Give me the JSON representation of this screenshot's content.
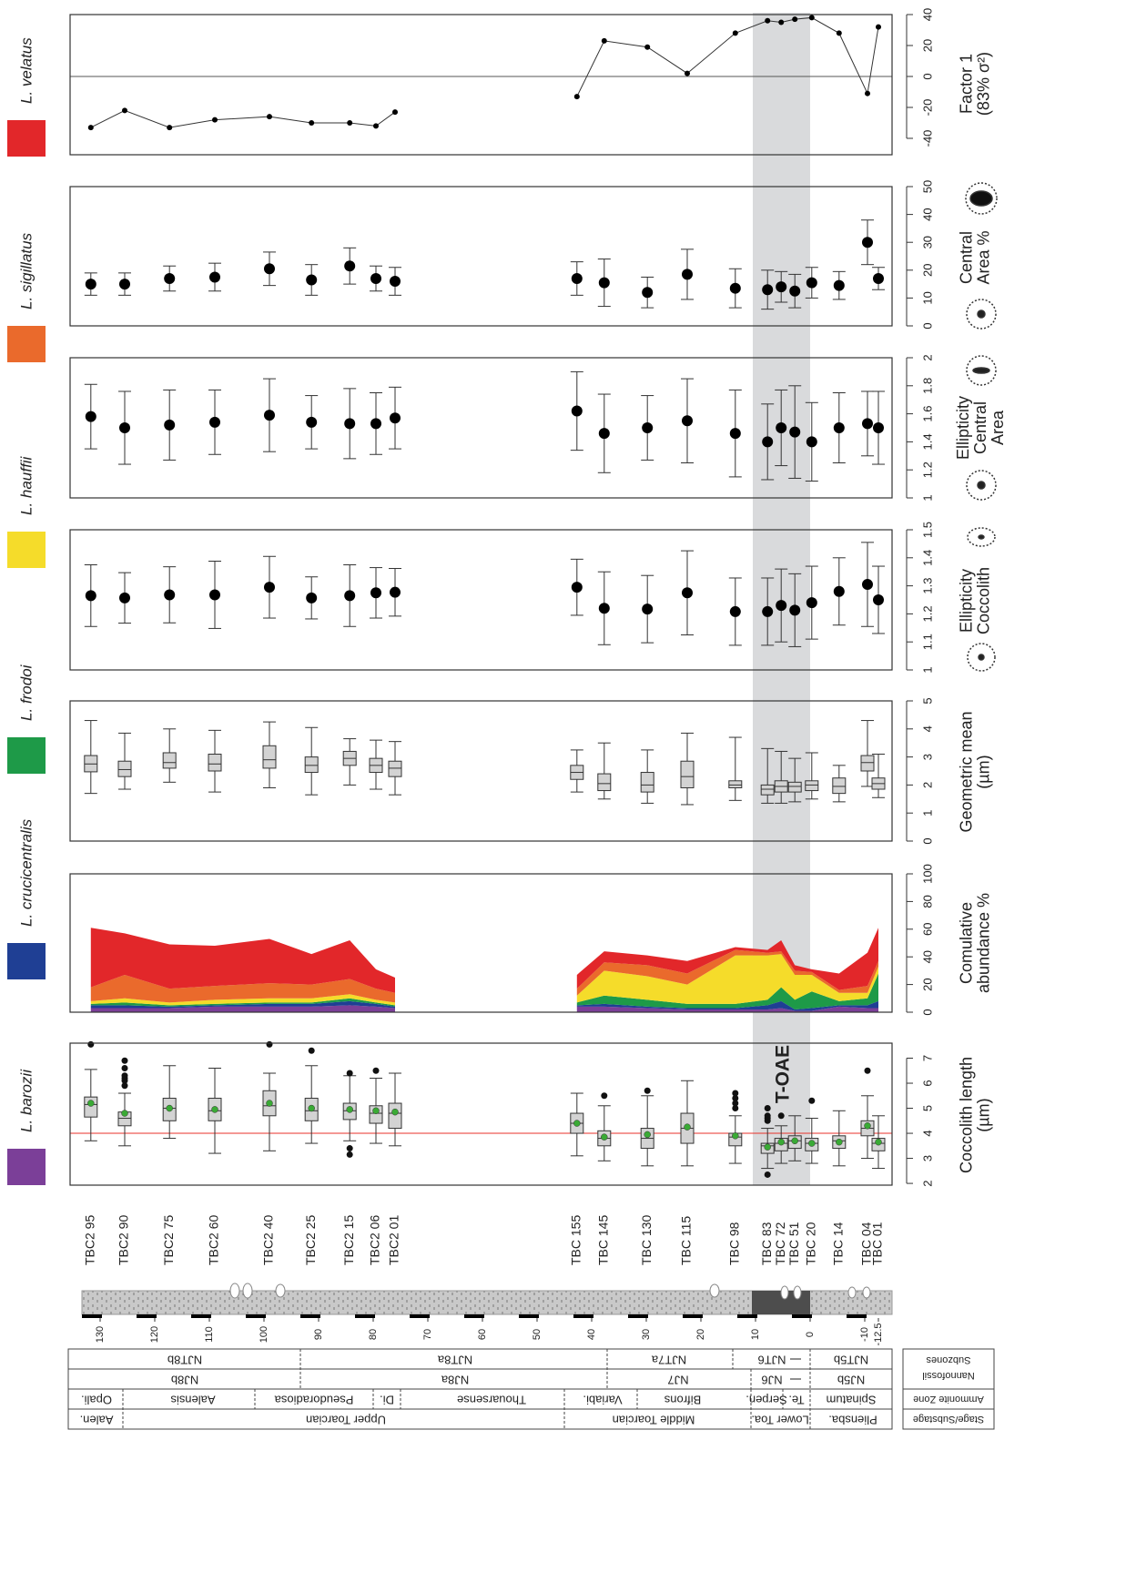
{
  "samples": [
    "TBC2 95",
    "TBC2 90",
    "TBC2 75",
    "TBC2 60",
    "TBC2 40",
    "TBC2 25",
    "TBC2 15",
    "TBC2 06",
    "TBC2 01",
    null,
    "TBC 155",
    "TBC 145",
    "TBC 130",
    "TBC 115",
    "TBC 98",
    "TBC 83",
    "TBC 72",
    "TBC 51",
    "TBC 20",
    "TBC 14",
    "TBC 04",
    "TBC 01"
  ],
  "highlight": {
    "label": "T-OAE",
    "range": [
      10.5,
      0
    ],
    "color": "#d9dadc"
  },
  "section": {
    "depth_ticks": [
      130,
      120,
      110,
      100,
      90,
      80,
      70,
      60,
      50,
      40,
      30,
      20,
      10,
      0,
      -10,
      -12.5
    ]
  },
  "stratigraphy": {
    "headers": {
      "stage": "Stage/Substage",
      "ammonite": "Ammonite Zone",
      "nannofossil": [
        "Nannofossil",
        "Subzones"
      ]
    },
    "stage": [
      "Aalen.",
      "Upper Toarcian",
      "Middle Toarcian",
      "Lower Toa.",
      "Pliensba."
    ],
    "ammonite": [
      "Opali.",
      "Aalensis",
      "Pseudoradiosa",
      "Di.",
      "Thouarsense",
      "Variabi.",
      "Bifrons",
      "Serpen.",
      "Te.",
      "Spinatum"
    ],
    "nannofossil_zone": [
      "NJ8b",
      "NJ8a",
      "NJ7",
      "NJ6",
      "NJ5b"
    ],
    "subzones": [
      "NJT8b",
      "NJT8a",
      "NJT7a",
      "NJT6",
      "NJT5b"
    ]
  },
  "chart_data": [
    {
      "type": "boxplot",
      "y_label": [
        "Coccolith length",
        "(µm)"
      ],
      "xlim": [
        135.5,
        -15
      ],
      "ylim": [
        1.93,
        7.6
      ],
      "yticks": [
        2,
        3,
        4,
        5,
        6,
        7
      ],
      "ref_line": 4,
      "ref_color": "#e8312a",
      "box_color": "#d3d3d3",
      "mean_color": "#3aaa35",
      "x": [
        131.7,
        125.5,
        117.3,
        109,
        99,
        91.3,
        84.3,
        79.5,
        76,
        null,
        42.7,
        37.7,
        29.8,
        22.5,
        13.7,
        7.8,
        5.3,
        2.8,
        -0.3,
        -5.3,
        -10.5,
        -12.5
      ],
      "low": [
        3.7,
        3.5,
        3.8,
        3.2,
        3.3,
        3.6,
        3.7,
        3.6,
        3.5,
        null,
        3.1,
        2.9,
        2.7,
        2.7,
        2.8,
        2.6,
        2.8,
        2.9,
        2.8,
        2.7,
        3.0,
        2.6
      ],
      "q1": [
        4.65,
        4.3,
        4.5,
        4.5,
        4.7,
        4.5,
        4.55,
        4.4,
        4.2,
        null,
        4.0,
        3.5,
        3.4,
        3.6,
        3.5,
        3.2,
        3.3,
        3.4,
        3.3,
        3.4,
        3.9,
        3.3
      ],
      "median": [
        5.15,
        4.6,
        5.0,
        4.9,
        5.1,
        4.9,
        4.9,
        4.8,
        4.8,
        null,
        4.4,
        3.8,
        3.8,
        4.2,
        3.85,
        3.5,
        3.6,
        3.7,
        3.6,
        3.7,
        4.2,
        3.6
      ],
      "q3": [
        5.45,
        4.85,
        5.4,
        5.4,
        5.7,
        5.4,
        5.2,
        5.1,
        5.2,
        null,
        4.8,
        4.1,
        4.2,
        4.8,
        4.0,
        3.6,
        3.8,
        3.9,
        3.8,
        3.9,
        4.5,
        3.8
      ],
      "high": [
        6.55,
        5.6,
        6.7,
        6.6,
        6.4,
        6.7,
        6.3,
        6.2,
        6.4,
        null,
        5.6,
        5.1,
        5.5,
        6.1,
        4.7,
        4.2,
        4.3,
        4.7,
        4.6,
        4.9,
        5.5,
        4.7
      ],
      "mean": [
        5.2,
        4.8,
        5.0,
        4.95,
        5.2,
        5.0,
        4.95,
        4.9,
        4.85,
        null,
        4.4,
        3.85,
        3.95,
        4.25,
        3.9,
        3.45,
        3.65,
        3.7,
        3.6,
        3.65,
        4.3,
        3.65
      ],
      "outliers": [
        [
          7.55
        ],
        [
          5.9,
          6.1,
          6.2,
          6.3,
          6.6,
          6.9
        ],
        [],
        [],
        [
          7.55
        ],
        [
          7.3
        ],
        [
          3.15,
          3.4,
          6.4
        ],
        [
          6.5
        ],
        [],
        null,
        [],
        [
          5.5
        ],
        [
          5.7
        ],
        [],
        [
          5.0,
          5.2,
          5.4,
          5.6
        ],
        [
          2.35,
          4.5,
          4.6,
          4.7,
          5.0
        ],
        [
          4.7
        ],
        [],
        [
          5.3
        ],
        [],
        [
          6.5
        ],
        []
      ]
    },
    {
      "type": "area",
      "y_label": [
        "Comulative",
        "abundance %"
      ],
      "xlim": [
        135.5,
        -15
      ],
      "ylim": [
        0,
        100
      ],
      "yticks": [
        0,
        20,
        40,
        60,
        80,
        100
      ],
      "x": [
        131.7,
        125.5,
        117.3,
        109,
        99,
        91.3,
        84.3,
        79.5,
        76,
        null,
        42.7,
        37.7,
        29.8,
        22.5,
        13.7,
        7.8,
        5.3,
        2.8,
        -0.3,
        -5.3,
        -10.5,
        -12.5
      ],
      "series": [
        {
          "name": "L. barozii",
          "color": "#7b3f98",
          "values": [
            3,
            3,
            3,
            4,
            4,
            4,
            5,
            4,
            3,
            null,
            4,
            4,
            3,
            2,
            2,
            2,
            3,
            1,
            1,
            4,
            3,
            3
          ]
        },
        {
          "name": "L. crucicentralis",
          "color": "#1f3f94",
          "values": [
            2,
            2,
            1,
            1,
            2,
            2,
            3,
            2,
            1,
            null,
            1,
            2,
            1,
            1,
            1,
            3,
            5,
            1,
            2,
            1,
            2,
            5
          ]
        },
        {
          "name": "L. frodoi",
          "color": "#1e9a48",
          "values": [
            1,
            2,
            1,
            1,
            1,
            1,
            2,
            1,
            1,
            null,
            2,
            6,
            5,
            3,
            3,
            4,
            10,
            7,
            12,
            3,
            5,
            20
          ]
        },
        {
          "name": "L. hauffii",
          "color": "#f5dc2a",
          "values": [
            2,
            3,
            2,
            3,
            3,
            3,
            3,
            2,
            2,
            null,
            5,
            18,
            17,
            14,
            35,
            32,
            24,
            18,
            12,
            6,
            4,
            5
          ]
        },
        {
          "name": "L. sigillatus",
          "color": "#ea6a2c",
          "values": [
            10,
            17,
            10,
            10,
            11,
            10,
            11,
            8,
            7,
            null,
            5,
            6,
            8,
            8,
            4,
            2,
            2,
            3,
            2,
            2,
            5,
            4
          ]
        },
        {
          "name": "L. velatus",
          "color": "#e2272a",
          "values": [
            43,
            30,
            32,
            29,
            32,
            22,
            28,
            14,
            11,
            null,
            10,
            8,
            7,
            9,
            2,
            2,
            8,
            4,
            2,
            12,
            24,
            24
          ]
        }
      ]
    },
    {
      "type": "boxplot",
      "y_label": [
        "Geometric mean",
        "(µm)"
      ],
      "xlim": [
        135.5,
        -15
      ],
      "ylim": [
        0,
        5
      ],
      "yticks": [
        0,
        1,
        2,
        3,
        4,
        5
      ],
      "box_color": "#d3d3d3",
      "x": [
        131.7,
        125.5,
        117.3,
        109,
        99,
        91.3,
        84.3,
        79.5,
        76,
        null,
        42.7,
        37.7,
        29.8,
        22.5,
        13.7,
        7.8,
        5.3,
        2.8,
        -0.3,
        -5.3,
        -10.5,
        -12.5
      ],
      "low": [
        1.7,
        1.85,
        2.1,
        1.75,
        1.9,
        1.65,
        2.0,
        1.85,
        1.65,
        null,
        1.75,
        1.5,
        1.35,
        1.3,
        1.45,
        1.35,
        1.35,
        1.4,
        1.5,
        1.4,
        1.95,
        1.55
      ],
      "q1": [
        2.47,
        2.3,
        2.6,
        2.5,
        2.6,
        2.45,
        2.7,
        2.45,
        2.3,
        null,
        2.2,
        1.8,
        1.75,
        1.9,
        1.9,
        1.65,
        1.75,
        1.75,
        1.8,
        1.7,
        2.5,
        1.85
      ],
      "median": [
        2.75,
        2.55,
        2.8,
        2.75,
        2.9,
        2.7,
        2.95,
        2.7,
        2.6,
        null,
        2.45,
        2.05,
        2.0,
        2.3,
        2.0,
        1.85,
        1.95,
        1.95,
        2.0,
        1.95,
        2.8,
        2.05
      ],
      "q3": [
        3.05,
        2.85,
        3.15,
        3.1,
        3.4,
        3.0,
        3.2,
        2.95,
        2.85,
        null,
        2.7,
        2.4,
        2.45,
        2.85,
        2.15,
        2.0,
        2.15,
        2.1,
        2.15,
        2.25,
        3.05,
        2.25
      ],
      "high": [
        4.3,
        3.85,
        4.0,
        3.95,
        4.25,
        4.05,
        3.65,
        3.6,
        3.55,
        null,
        3.25,
        3.5,
        3.25,
        3.85,
        3.7,
        3.3,
        3.2,
        2.95,
        3.15,
        2.7,
        4.3,
        3.1
      ]
    },
    {
      "type": "errorbar",
      "y_label": [
        "Ellipticity",
        "Coccolith"
      ],
      "xlim": [
        135.5,
        -15
      ],
      "ylim": [
        1,
        1.5
      ],
      "yticks": [
        1,
        1.1,
        1.2,
        1.3,
        1.4,
        1.5
      ],
      "x": [
        131.7,
        125.5,
        117.3,
        109,
        99,
        91.3,
        84.3,
        79.5,
        76,
        null,
        42.7,
        37.7,
        29.8,
        22.5,
        13.7,
        7.8,
        5.3,
        2.8,
        -0.3,
        -5.3,
        -10.5,
        -12.5
      ],
      "values": [
        1.265,
        1.257,
        1.268,
        1.268,
        1.295,
        1.257,
        1.265,
        1.275,
        1.277,
        null,
        1.295,
        1.22,
        1.217,
        1.275,
        1.208,
        1.208,
        1.23,
        1.213,
        1.24,
        1.28,
        1.305,
        1.25
      ],
      "errors": [
        0.11,
        0.09,
        0.1,
        0.12,
        0.11,
        0.075,
        0.11,
        0.09,
        0.085,
        null,
        0.1,
        0.13,
        0.12,
        0.15,
        0.12,
        0.12,
        0.13,
        0.13,
        0.13,
        0.12,
        0.15,
        0.12
      ]
    },
    {
      "type": "errorbar",
      "y_label": [
        "Ellipticity",
        "Central",
        "Area"
      ],
      "xlim": [
        135.5,
        -15
      ],
      "ylim": [
        1,
        2
      ],
      "yticks": [
        1,
        1.2,
        1.4,
        1.6,
        1.8,
        2
      ],
      "x": [
        131.7,
        125.5,
        117.3,
        109,
        99,
        91.3,
        84.3,
        79.5,
        76,
        null,
        42.7,
        37.7,
        29.8,
        22.5,
        13.7,
        7.8,
        5.3,
        2.8,
        -0.3,
        -5.3,
        -10.5,
        -12.5
      ],
      "values": [
        1.58,
        1.5,
        1.52,
        1.54,
        1.59,
        1.54,
        1.53,
        1.53,
        1.57,
        null,
        1.62,
        1.46,
        1.5,
        1.55,
        1.46,
        1.4,
        1.5,
        1.47,
        1.4,
        1.5,
        1.53,
        1.5
      ],
      "errors": [
        0.23,
        0.26,
        0.25,
        0.23,
        0.26,
        0.19,
        0.25,
        0.22,
        0.22,
        null,
        0.28,
        0.28,
        0.23,
        0.3,
        0.31,
        0.27,
        0.27,
        0.33,
        0.28,
        0.25,
        0.23,
        0.26
      ]
    },
    {
      "type": "errorbar",
      "y_label": [
        "Central",
        "Area %"
      ],
      "xlim": [
        135.5,
        -15
      ],
      "ylim": [
        0,
        50
      ],
      "yticks": [
        0,
        10,
        20,
        30,
        40,
        50
      ],
      "x": [
        131.7,
        125.5,
        117.3,
        109,
        99,
        91.3,
        84.3,
        79.5,
        76,
        null,
        42.7,
        37.7,
        29.8,
        22.5,
        13.7,
        7.8,
        5.3,
        2.8,
        -0.3,
        -5.3,
        -10.5,
        -12.5
      ],
      "values": [
        15,
        15,
        17,
        17.5,
        20.5,
        16.5,
        21.5,
        17,
        16,
        null,
        17,
        15.5,
        12,
        18.5,
        13.5,
        13,
        14,
        12.5,
        15.5,
        14.5,
        30,
        17
      ],
      "errors": [
        4,
        4,
        4.5,
        5,
        6,
        5.5,
        6.5,
        4.5,
        5,
        null,
        6,
        8.5,
        5.5,
        9,
        7,
        7,
        5.5,
        6,
        5.5,
        5,
        8,
        4
      ]
    },
    {
      "type": "line",
      "y_label": [
        "Factor 1",
        "(83% σ²)"
      ],
      "xlim": [
        135.5,
        -15
      ],
      "ylim": [
        -50.6,
        40
      ],
      "yticks": [
        -40,
        -20,
        0,
        20,
        40
      ],
      "hline": 0,
      "x": [
        131.7,
        125.5,
        117.3,
        109,
        99,
        91.3,
        84.3,
        79.5,
        76,
        null,
        42.7,
        37.7,
        29.8,
        22.5,
        13.7,
        7.8,
        5.3,
        2.8,
        -0.3,
        -5.3,
        -10.5,
        -12.5
      ],
      "values": [
        -33,
        -22,
        -33,
        -28,
        -26,
        -30,
        -30,
        -32,
        -23,
        null,
        -13,
        23,
        19,
        2,
        28,
        36,
        35,
        37,
        38,
        28,
        -11,
        32
      ]
    }
  ]
}
